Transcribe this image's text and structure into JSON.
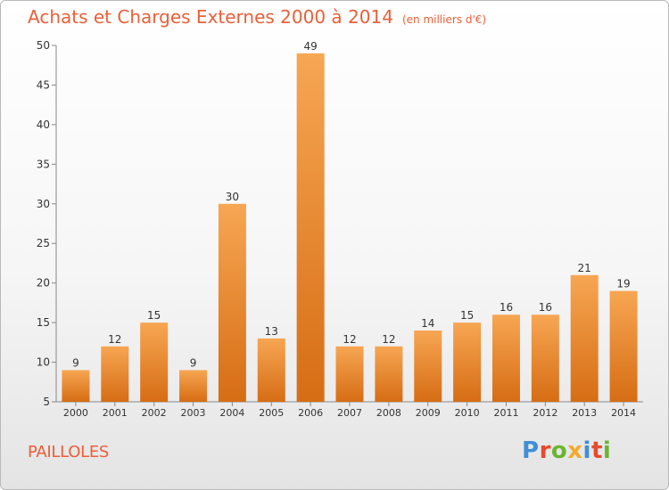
{
  "chart_data": {
    "type": "bar",
    "title": "Achats et Charges Externes 2000 à 2014",
    "subtitle": "(en milliers d'€)",
    "categories": [
      "2000",
      "2001",
      "2002",
      "2003",
      "2004",
      "2005",
      "2006",
      "2007",
      "2008",
      "2009",
      "2010",
      "2011",
      "2012",
      "2013",
      "2014"
    ],
    "values": [
      9,
      12,
      15,
      9,
      30,
      13,
      49,
      12,
      12,
      14,
      15,
      16,
      16,
      21,
      19
    ],
    "ylim": [
      5,
      50
    ],
    "yticks": [
      5,
      10,
      15,
      20,
      25,
      30,
      35,
      40,
      45,
      50
    ],
    "grid": false,
    "bar_color": "#f08a2e"
  },
  "footer": {
    "place": "PAILLOLES",
    "logo_letters": [
      "P",
      "r",
      "o",
      "x",
      "i",
      "t",
      "i"
    ]
  },
  "colors": {
    "accent": "#e8603a",
    "logo": [
      "#3f8fd8",
      "#e64a2e",
      "#6ab531",
      "#f2a92f",
      "#3f8fd8",
      "#e64a2e",
      "#6ab531"
    ]
  }
}
